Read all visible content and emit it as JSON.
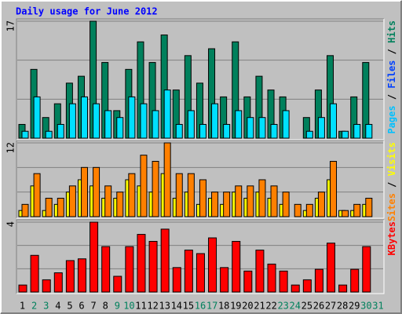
{
  "chart_data": {
    "type": "bar",
    "title": "Daily usage for June 2012",
    "categories": [
      "1",
      "2",
      "3",
      "4",
      "5",
      "6",
      "7",
      "8",
      "9",
      "10",
      "11",
      "12",
      "13",
      "14",
      "15",
      "16",
      "17",
      "18",
      "19",
      "20",
      "21",
      "22",
      "23",
      "24",
      "25",
      "26",
      "27",
      "28",
      "29",
      "30",
      "31"
    ],
    "label_colors": [
      "#000000",
      "#00805c",
      "#00805c",
      "#000000",
      "#000000",
      "#000000",
      "#000000",
      "#000000",
      "#00805c",
      "#00805c",
      "#000000",
      "#000000",
      "#000000",
      "#000000",
      "#000000",
      "#00805c",
      "#00805c",
      "#000000",
      "#000000",
      "#000000",
      "#000000",
      "#000000",
      "#00805c",
      "#00805c",
      "#000000",
      "#000000",
      "#000000",
      "#000000",
      "#000000",
      "#00805c",
      "#00805c"
    ],
    "panels": [
      {
        "ylim": [
          0,
          17
        ],
        "yticks": [
          17
        ],
        "legend": [
          "Pages",
          "/",
          "Files",
          "/",
          "Hits"
        ],
        "legend_colors": [
          "#00c0ff",
          "#000000",
          "#0040ff",
          "#000000",
          "#00805c"
        ],
        "series": [
          {
            "color": "#00805c",
            "values": [
              2,
              10,
              3,
              5,
              8,
              9,
              17,
              11,
              4,
              10,
              14,
              11,
              15,
              7,
              12,
              8,
              13,
              6,
              14,
              6,
              9,
              7,
              6,
              0,
              3,
              7,
              12,
              1,
              6,
              11,
              0
            ]
          },
          {
            "color": "#00e0ff",
            "values": [
              1,
              6,
              1,
              2,
              5,
              6,
              5,
              4,
              3,
              6,
              5,
              4,
              7,
              2,
              4,
              2,
              5,
              2,
              4,
              3,
              3,
              2,
              4,
              0,
              1,
              3,
              5,
              1,
              2,
              2,
              0
            ]
          }
        ]
      },
      {
        "ylim": [
          0,
          12
        ],
        "yticks": [
          12
        ],
        "legend": [
          "Sites",
          "/",
          "Visits"
        ],
        "legend_colors": [
          "#ff8000",
          "#000000",
          "#ffff00"
        ],
        "series": [
          {
            "color": "#ffff00",
            "values": [
              1,
              5,
              1,
              2,
              4,
              6,
              5,
              3,
              3,
              6,
              5,
              4,
              7,
              3,
              4,
              2,
              3,
              2,
              4,
              3,
              4,
              3,
              2,
              0,
              1,
              3,
              6,
              1,
              1,
              2,
              0
            ]
          },
          {
            "color": "#ff8000",
            "values": [
              2,
              7,
              3,
              3,
              5,
              8,
              8,
              5,
              4,
              7,
              10,
              9,
              12,
              7,
              7,
              6,
              4,
              4,
              5,
              5,
              6,
              5,
              4,
              2,
              2,
              4,
              9,
              1,
              2,
              3,
              0
            ]
          }
        ]
      },
      {
        "ylim": [
          0,
          4
        ],
        "yticks": [
          4
        ],
        "legend": [
          "KBytes"
        ],
        "legend_colors": [
          "#ff0000"
        ],
        "series": [
          {
            "color": "#ff0000",
            "values": [
              0.4,
              2.1,
              0.7,
              1.1,
              1.8,
              1.9,
              4.0,
              2.6,
              0.9,
              2.6,
              3.3,
              2.9,
              3.6,
              1.4,
              2.4,
              2.2,
              3.1,
              1.4,
              2.9,
              1.2,
              2.4,
              1.6,
              1.2,
              0.4,
              0.7,
              1.3,
              2.8,
              0.4,
              1.3,
              2.6,
              0
            ]
          }
        ]
      }
    ]
  }
}
